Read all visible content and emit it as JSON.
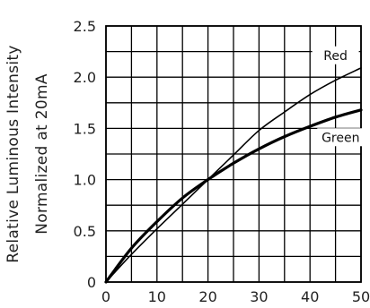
{
  "chart_data": {
    "type": "line",
    "title": "",
    "xlabel": "",
    "ylabel_lines": [
      "Relative Luminous Intensity",
      "Normalized at 20mA"
    ],
    "xlim": [
      0,
      50
    ],
    "ylim": [
      0,
      2.5
    ],
    "x_ticks": [
      "0",
      "10",
      "20",
      "30",
      "40",
      "50"
    ],
    "y_ticks": [
      "0",
      "0.5",
      "1.0",
      "1.5",
      "2.0",
      "2.5"
    ],
    "x_minor_step": 5,
    "y_minor_step": 0.25,
    "grid": true,
    "legend": "inline labels at line ends",
    "series": [
      {
        "name": "Red",
        "color": "#000000",
        "x": [
          0,
          5,
          10,
          15,
          20,
          25,
          30,
          35,
          40,
          45,
          50
        ],
        "y": [
          0,
          0.27,
          0.52,
          0.76,
          1.0,
          1.24,
          1.48,
          1.66,
          1.83,
          1.97,
          2.09
        ]
      },
      {
        "name": "Green",
        "color": "#000000",
        "x": [
          0,
          5,
          10,
          15,
          20,
          25,
          30,
          35,
          40,
          45,
          50
        ],
        "y": [
          0,
          0.33,
          0.59,
          0.82,
          1.0,
          1.16,
          1.3,
          1.42,
          1.52,
          1.61,
          1.68
        ]
      }
    ]
  }
}
